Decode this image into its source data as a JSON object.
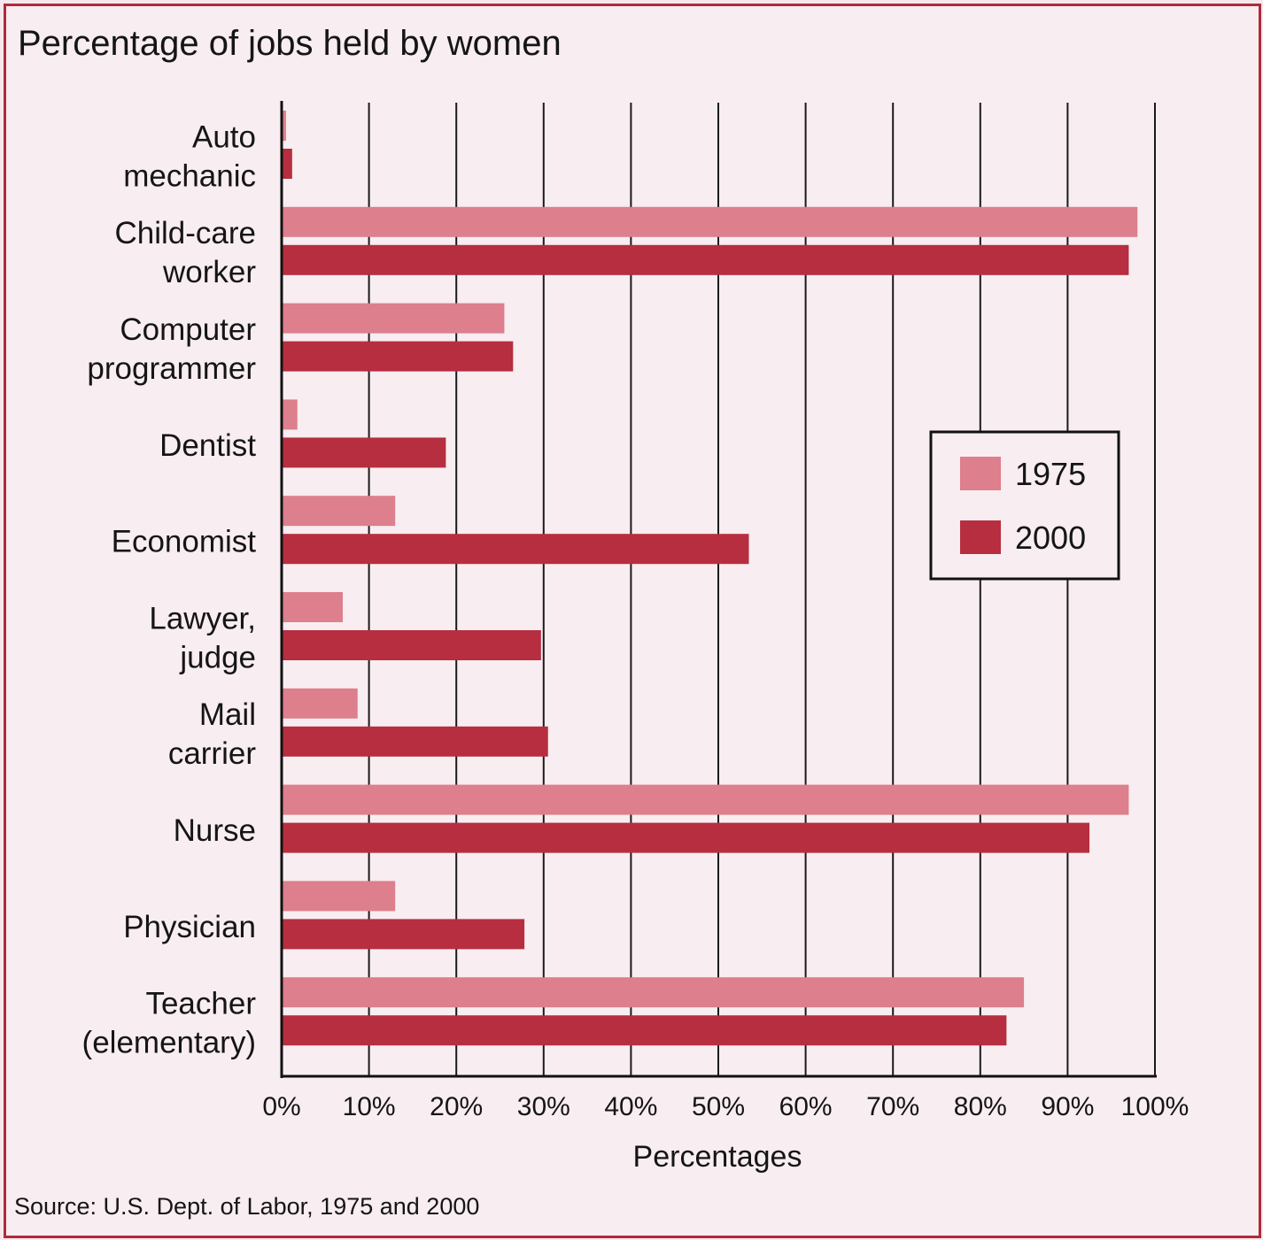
{
  "chart_data": {
    "type": "bar",
    "orientation": "horizontal",
    "title": "Percentage of jobs held by women",
    "xlabel": "Percentages",
    "ylabel": "",
    "source": "Source: U.S. Dept. of Labor, 1975 and 2000",
    "xlim": [
      0,
      100
    ],
    "x_ticks": [
      "0%",
      "10%",
      "20%",
      "30%",
      "40%",
      "50%",
      "60%",
      "70%",
      "80%",
      "90%",
      "100%"
    ],
    "grid": true,
    "legend_position": "right",
    "categories": [
      [
        "Auto",
        "mechanic"
      ],
      [
        "Child-care",
        "worker"
      ],
      [
        "Computer",
        "programmer"
      ],
      [
        "Dentist"
      ],
      [
        "Economist"
      ],
      [
        "Lawyer,",
        "judge"
      ],
      [
        "Mail",
        "carrier"
      ],
      [
        "Nurse"
      ],
      [
        "Physician"
      ],
      [
        "Teacher",
        "(elementary)"
      ]
    ],
    "series": [
      {
        "name": "1975",
        "color": "#dd7f8c",
        "values": [
          0.5,
          98,
          25.5,
          1.8,
          13,
          7,
          8.7,
          97,
          13,
          85
        ]
      },
      {
        "name": "2000",
        "color": "#b62e40",
        "values": [
          1.2,
          97,
          26.5,
          18.8,
          53.5,
          29.7,
          30.5,
          92.5,
          27.8,
          83
        ]
      }
    ]
  }
}
